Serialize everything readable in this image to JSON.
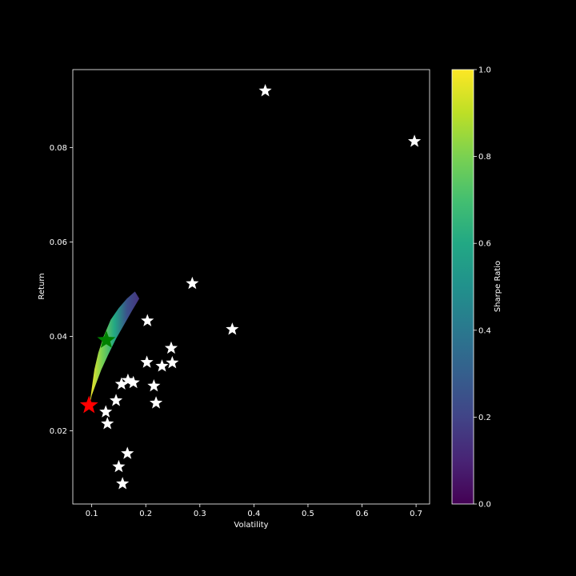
{
  "chart_data": {
    "type": "scatter",
    "title": "",
    "xlabel": "Volatility",
    "ylabel": "Return",
    "xlim": [
      0.065,
      0.725
    ],
    "ylim": [
      0.0045,
      0.0965
    ],
    "xticks": [
      "0.1",
      "0.2",
      "0.3",
      "0.4",
      "0.5",
      "0.6",
      "0.7"
    ],
    "yticks": [
      "0.02",
      "0.04",
      "0.06",
      "0.08"
    ],
    "grid": false,
    "colorbar": {
      "label": "Sharpe Ratio",
      "range": [
        0.0,
        1.0
      ],
      "ticks": [
        "0.0",
        "0.2",
        "0.4",
        "0.6",
        "0.8",
        "1.0"
      ],
      "colormap": "viridis"
    },
    "simulated_portfolios": {
      "color_scale": "sharpe_ratio",
      "envelope_lower": [
        [
          0.096,
          0.0255
        ],
        [
          0.1,
          0.0275
        ],
        [
          0.108,
          0.03
        ],
        [
          0.118,
          0.033
        ],
        [
          0.13,
          0.036
        ],
        [
          0.145,
          0.0395
        ],
        [
          0.16,
          0.0425
        ],
        [
          0.175,
          0.0455
        ],
        [
          0.188,
          0.048
        ]
      ],
      "envelope_upper": [
        [
          0.096,
          0.0255
        ],
        [
          0.1,
          0.029
        ],
        [
          0.105,
          0.033
        ],
        [
          0.112,
          0.0365
        ],
        [
          0.122,
          0.04
        ],
        [
          0.135,
          0.0435
        ],
        [
          0.15,
          0.046
        ],
        [
          0.165,
          0.048
        ],
        [
          0.18,
          0.0495
        ],
        [
          0.188,
          0.048
        ]
      ]
    },
    "assets": {
      "color": "#ffffff",
      "marker": "star",
      "points": [
        [
          0.421,
          0.092
        ],
        [
          0.697,
          0.0813
        ],
        [
          0.286,
          0.0512
        ],
        [
          0.36,
          0.0415
        ],
        [
          0.203,
          0.0433
        ],
        [
          0.247,
          0.0375
        ],
        [
          0.249,
          0.0344
        ],
        [
          0.23,
          0.0337
        ],
        [
          0.202,
          0.0345
        ],
        [
          0.167,
          0.0307
        ],
        [
          0.177,
          0.0302
        ],
        [
          0.155,
          0.0299
        ],
        [
          0.215,
          0.0295
        ],
        [
          0.145,
          0.0264
        ],
        [
          0.219,
          0.0259
        ],
        [
          0.126,
          0.024
        ],
        [
          0.129,
          0.0215
        ],
        [
          0.166,
          0.0152
        ],
        [
          0.15,
          0.0124
        ],
        [
          0.157,
          0.0088
        ]
      ]
    },
    "max_sharpe_portfolio": {
      "x": 0.127,
      "y": 0.0392,
      "color": "#008000",
      "marker": "star"
    },
    "min_volatility_portfolio": {
      "x": 0.095,
      "y": 0.0254,
      "color": "#ff0000",
      "marker": "star"
    }
  }
}
